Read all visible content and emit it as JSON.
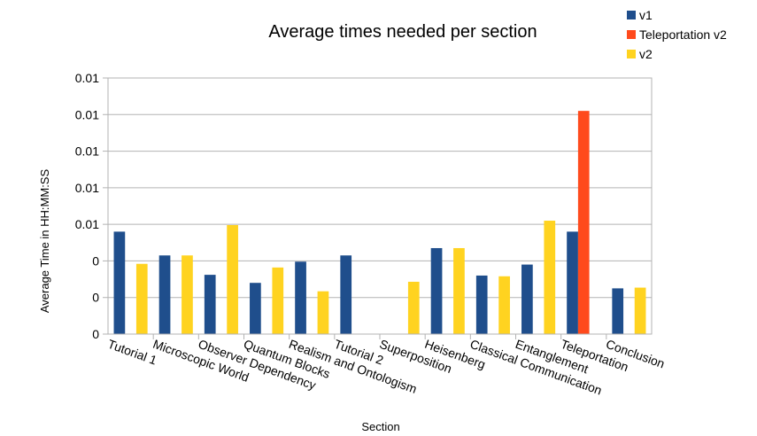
{
  "chart_data": {
    "type": "bar",
    "title": "Average times needed per section",
    "xlabel": "Section",
    "ylabel": "Average Time in HH:MM:SS",
    "y_tick_labels": [
      "0",
      "0",
      "0",
      "0.01",
      "0.01",
      "0.01",
      "0.01",
      "0.01"
    ],
    "ylim": [
      0,
      7
    ],
    "grid": true,
    "legend_position": "top-right",
    "categories": [
      "Tutorial 1",
      "Microscopic World",
      "Observer Dependency",
      "Quantum Blocks",
      "Realism and Ontologism",
      "Tutorial 2",
      "Superposition",
      "Heisenberg",
      "Classical Communication",
      "Entanglement",
      "Teleportation",
      "Conclusion"
    ],
    "series": [
      {
        "name": "v1",
        "color": "#1f4e8c",
        "values": [
          2.8,
          2.15,
          1.62,
          1.4,
          1.98,
          2.15,
          null,
          2.35,
          1.6,
          1.9,
          2.8,
          1.25
        ]
      },
      {
        "name": "Teleportation v2",
        "color": "#ff4a1c",
        "values": [
          null,
          null,
          null,
          null,
          null,
          null,
          null,
          null,
          null,
          null,
          6.1,
          null
        ]
      },
      {
        "name": "v2",
        "color": "#ffd320",
        "values": [
          1.92,
          2.15,
          2.98,
          1.82,
          1.17,
          null,
          1.43,
          2.35,
          1.58,
          3.1,
          null,
          1.27
        ]
      }
    ]
  }
}
